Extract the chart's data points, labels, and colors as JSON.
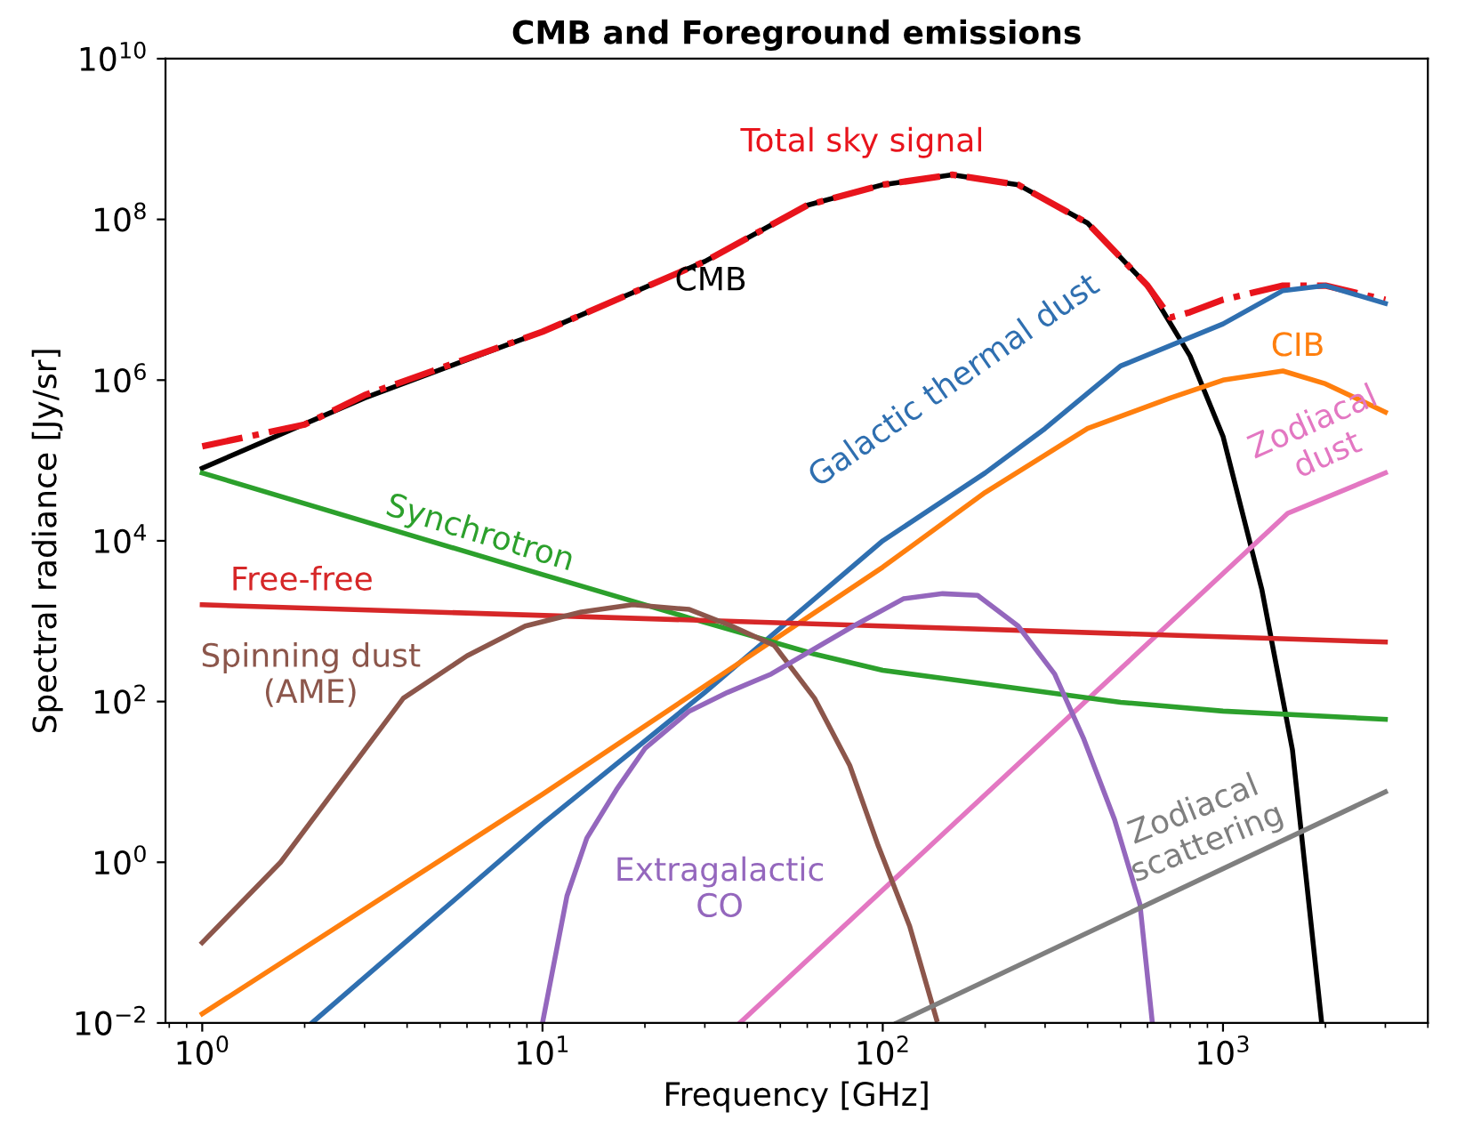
{
  "chart_data": {
    "type": "line",
    "title": "CMB and Foreground emissions",
    "xlabel": "Frequency [GHz]",
    "ylabel": "Spectral radiance [Jy/sr]",
    "log": "xy",
    "grid": false,
    "legend": false,
    "marker": "none",
    "xlim": [
      0.78,
      4000
    ],
    "ylim": [
      0.01,
      10000000000.0
    ],
    "xticks": [
      {
        "value": 1,
        "label": "10$^{0}$"
      },
      {
        "value": 10,
        "label": "10$^{1}$"
      },
      {
        "value": 100,
        "label": "10$^{2}$"
      },
      {
        "value": 1000,
        "label": "10$^{3}$"
      }
    ],
    "yticks": [
      {
        "value": 0.01,
        "label": "10$^{−2}$"
      },
      {
        "value": 1,
        "label": "10$^{0}$"
      },
      {
        "value": 100,
        "label": "10$^{2}$"
      },
      {
        "value": 10000,
        "label": "10$^{4}$"
      },
      {
        "value": 1000000,
        "label": "10$^{6}$"
      },
      {
        "value": 100000000,
        "label": "10$^{8}$"
      },
      {
        "value": 10000000000,
        "label": "10$^{10}$"
      }
    ],
    "series": [
      {
        "name": "CMB",
        "color": "#000000",
        "line_style": "solid",
        "x": [
          1,
          3,
          10,
          30,
          60,
          100,
          160,
          250,
          400,
          600,
          800,
          1000,
          1300,
          1600,
          1950
        ],
        "values": [
          80000,
          600000,
          4000000,
          30000000,
          150000000,
          270000000,
          360000000,
          270000000,
          90000000,
          15000000,
          2000000,
          200000,
          2500,
          25,
          0.01
        ]
      },
      {
        "name": "Total sky signal",
        "color": "#e8141c",
        "line_style": "dashdot",
        "x": [
          1,
          2,
          3,
          10,
          30,
          60,
          100,
          160,
          250,
          400,
          600,
          700,
          800,
          1000,
          1500,
          2000,
          3000
        ],
        "values": [
          150000,
          280000,
          650000,
          4000000,
          30000000,
          150000000,
          270000000,
          360000000,
          270000000,
          90000000,
          15000000,
          6000000,
          7000000,
          10000000,
          15000000,
          15000000,
          10000000
        ]
      },
      {
        "name": "Galactic thermal dust",
        "color": "#2f6fb0",
        "line_style": "solid",
        "x": [
          2.1,
          10,
          30,
          100,
          200,
          300,
          500,
          1000,
          1500,
          2000,
          3000
        ],
        "values": [
          0.01,
          3,
          130,
          10000,
          70000,
          250000,
          1500000,
          5000000,
          13000000,
          15000000,
          9000000
        ]
      },
      {
        "name": "CIB",
        "color": "#ff7f0e",
        "line_style": "solid",
        "x": [
          1,
          10,
          100,
          200,
          400,
          700,
          1000,
          1500,
          2000,
          3000
        ],
        "values": [
          0.013,
          7,
          4700,
          40000,
          250000,
          600000,
          1000000,
          1300000,
          900000,
          400000
        ]
      },
      {
        "name": "Zodiacal\ndust",
        "color": "#e377c2",
        "line_style": "solid",
        "x": [
          38,
          1550,
          3000
        ],
        "values": [
          0.01,
          22000,
          70000
        ]
      },
      {
        "name": "Synchrotron",
        "color": "#2ca02c",
        "line_style": "solid",
        "x": [
          1,
          10,
          20,
          27,
          40,
          63,
          100,
          190,
          500,
          1000,
          3000
        ],
        "values": [
          70000,
          3800,
          1600,
          1100,
          680,
          390,
          245,
          170,
          98,
          76,
          60
        ]
      },
      {
        "name": "Free-free",
        "color": "#d62728",
        "line_style": "solid",
        "x": [
          1,
          100,
          3000
        ],
        "values": [
          1600,
          870,
          550
        ]
      },
      {
        "name": "Spinning dust\n(AME)",
        "color": "#8c564b",
        "line_style": "solid",
        "x": [
          1,
          1.7,
          3.9,
          6,
          8.9,
          13,
          18.4,
          27,
          36,
          48,
          63,
          80,
          97,
          120,
          144
        ],
        "values": [
          0.1,
          1,
          110,
          370,
          870,
          1300,
          1600,
          1400,
          870,
          500,
          110,
          16,
          1.6,
          0.16,
          0.011
        ]
      },
      {
        "name": "Extragalactic\nCO",
        "color": "#9467bd",
        "line_style": "solid",
        "x": [
          10,
          11.8,
          13.5,
          16.5,
          20,
          27,
          35,
          47,
          82,
          115,
          150,
          190,
          250,
          320,
          390,
          480,
          570,
          620
        ],
        "values": [
          0.01,
          0.38,
          2,
          8,
          26,
          76,
          130,
          220,
          870,
          1900,
          2200,
          2100,
          870,
          220,
          34,
          3.4,
          0.3,
          0.01
        ]
      },
      {
        "name": "Zodiacal\nscattering",
        "color": "#7f7f7f",
        "line_style": "solid",
        "x": [
          110,
          3000
        ],
        "values": [
          0.01,
          7.5
        ]
      }
    ]
  }
}
